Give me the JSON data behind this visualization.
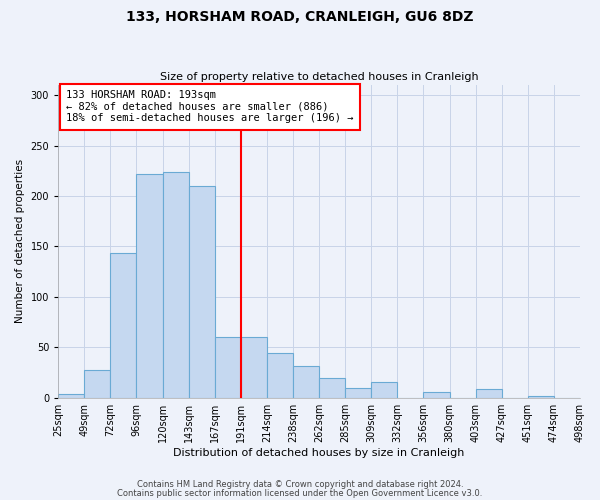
{
  "title": "133, HORSHAM ROAD, CRANLEIGH, GU6 8DZ",
  "subtitle": "Size of property relative to detached houses in Cranleigh",
  "xlabel": "Distribution of detached houses by size in Cranleigh",
  "ylabel": "Number of detached properties",
  "footer_line1": "Contains HM Land Registry data © Crown copyright and database right 2024.",
  "footer_line2": "Contains public sector information licensed under the Open Government Licence v3.0.",
  "bin_labels": [
    "25sqm",
    "49sqm",
    "72sqm",
    "96sqm",
    "120sqm",
    "143sqm",
    "167sqm",
    "191sqm",
    "214sqm",
    "238sqm",
    "262sqm",
    "285sqm",
    "309sqm",
    "332sqm",
    "356sqm",
    "380sqm",
    "403sqm",
    "427sqm",
    "451sqm",
    "474sqm",
    "498sqm"
  ],
  "counts": [
    4,
    27,
    143,
    222,
    224,
    210,
    60,
    60,
    44,
    31,
    20,
    10,
    16,
    0,
    6,
    0,
    9,
    0,
    2,
    0
  ],
  "bar_color": "#c5d8f0",
  "bar_edge_color": "#6aaad4",
  "property_line_bin": 7,
  "property_line_color": "red",
  "annotation_line1": "133 HORSHAM ROAD: 193sqm",
  "annotation_line2": "← 82% of detached houses are smaller (886)",
  "annotation_line3": "18% of semi-detached houses are larger (196) →",
  "annotation_box_color": "white",
  "annotation_box_edge_color": "red",
  "ylim": [
    0,
    310
  ],
  "grid_color": "#c8d4e8",
  "background_color": "#eef2fa",
  "title_fontsize": 10,
  "subtitle_fontsize": 8,
  "xlabel_fontsize": 8,
  "ylabel_fontsize": 7.5,
  "tick_fontsize": 7,
  "footer_fontsize": 6
}
